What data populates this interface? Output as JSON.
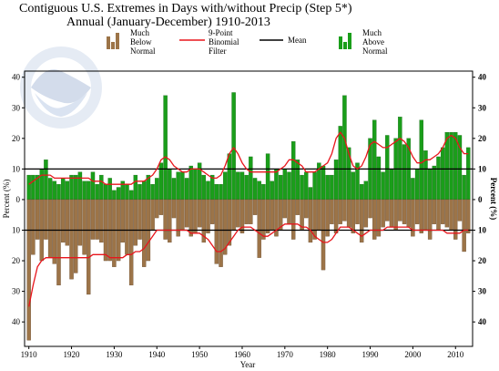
{
  "chart_data": {
    "type": "bar",
    "title": "Contiguous U.S. Extremes in Days with/without Precip (Step 5*)",
    "subtitle": "Annual (January-December) 1910-2013",
    "xlabel": "Year",
    "ylabel_left": "Percent (%)",
    "ylabel_right": "Percent (%)",
    "xlim": [
      1909,
      2014
    ],
    "ylim": [
      -48,
      42
    ],
    "yticks_left": [
      "40",
      "30",
      "20",
      "10",
      "0",
      "10",
      "20",
      "30",
      "40"
    ],
    "yticks_right": [
      "40",
      "30",
      "20",
      "10",
      "0",
      "10",
      "20",
      "30",
      "40"
    ],
    "xticks": [
      "1910",
      "1920",
      "1930",
      "1940",
      "1950",
      "1960",
      "1970",
      "1980",
      "1990",
      "2000",
      "2010"
    ],
    "mean_lines": [
      10,
      -10
    ],
    "legend": {
      "below_label": "Much Below Normal",
      "filter_label": "9-Point Binomial Filter",
      "mean_label": "Mean",
      "above_label": "Much Above Normal"
    },
    "colors": {
      "above": "#1a9e1a",
      "below": "#9c7448",
      "filter": "#e8151c",
      "mean": "#000000"
    },
    "years": [
      1910,
      1911,
      1912,
      1913,
      1914,
      1915,
      1916,
      1917,
      1918,
      1919,
      1920,
      1921,
      1922,
      1923,
      1924,
      1925,
      1926,
      1927,
      1928,
      1929,
      1930,
      1931,
      1932,
      1933,
      1934,
      1935,
      1936,
      1937,
      1938,
      1939,
      1940,
      1941,
      1942,
      1943,
      1944,
      1945,
      1946,
      1947,
      1948,
      1949,
      1950,
      1951,
      1952,
      1953,
      1954,
      1955,
      1956,
      1957,
      1958,
      1959,
      1960,
      1961,
      1962,
      1963,
      1964,
      1965,
      1966,
      1967,
      1968,
      1969,
      1970,
      1971,
      1972,
      1973,
      1974,
      1975,
      1976,
      1977,
      1978,
      1979,
      1980,
      1981,
      1982,
      1983,
      1984,
      1985,
      1986,
      1987,
      1988,
      1989,
      1990,
      1991,
      1992,
      1993,
      1994,
      1995,
      1996,
      1997,
      1998,
      1999,
      2000,
      2001,
      2002,
      2003,
      2004,
      2005,
      2006,
      2007,
      2008,
      2009,
      2010,
      2011,
      2012,
      2013
    ],
    "series": [
      {
        "name": "Much Above Normal",
        "values": [
          8,
          8,
          8,
          10,
          13,
          7,
          6,
          5,
          7,
          6,
          8,
          8,
          9,
          6,
          6,
          9,
          5,
          8,
          5,
          7,
          3,
          4,
          6,
          5,
          3,
          8,
          5,
          6,
          8,
          5,
          7,
          12,
          34,
          10,
          7,
          9,
          9,
          7,
          11,
          10,
          12,
          8,
          6,
          8,
          5,
          5,
          9,
          15,
          35,
          9,
          9,
          8,
          14,
          7,
          6,
          5,
          15,
          6,
          10,
          8,
          10,
          9,
          19,
          13,
          8,
          9,
          4,
          9,
          12,
          11,
          8,
          8,
          13,
          24,
          34,
          17,
          9,
          12,
          5,
          6,
          20,
          26,
          14,
          9,
          21,
          10,
          20,
          27,
          18,
          20,
          7,
          10,
          26,
          16,
          10,
          11,
          14,
          17,
          22,
          22,
          22,
          21,
          8,
          17
        ]
      },
      {
        "name": "Much Below Normal",
        "values": [
          -46,
          -18,
          -13,
          -20,
          -13,
          -19,
          -21,
          -28,
          -14,
          -15,
          -26,
          -24,
          -15,
          -18,
          -31,
          -13,
          -13,
          -14,
          -20,
          -20,
          -22,
          -20,
          -14,
          -18,
          -28,
          -15,
          -13,
          -22,
          -20,
          -10,
          -6,
          -5,
          -13,
          -14,
          -6,
          -12,
          -10,
          -9,
          -12,
          -11,
          -9,
          -14,
          -11,
          -8,
          -21,
          -22,
          -18,
          -15,
          -10,
          -9,
          -11,
          -8,
          -8,
          -5,
          -19,
          -13,
          -11,
          -10,
          -12,
          -10,
          -6,
          -8,
          -13,
          -5,
          -10,
          -6,
          -14,
          -13,
          -10,
          -23,
          -12,
          -8,
          -11,
          -8,
          -7,
          -9,
          -11,
          -8,
          -14,
          -9,
          -6,
          -13,
          -12,
          -9,
          -7,
          -9,
          -10,
          -7,
          -8,
          -9,
          -12,
          -8,
          -11,
          -10,
          -13,
          -8,
          -10,
          -8,
          -9,
          -10,
          -13,
          -7,
          -17,
          -11
        ]
      },
      {
        "name": "9-Point Binomial Filter",
        "values_above": [
          5,
          6,
          7,
          8,
          8,
          8,
          7,
          7,
          7,
          7,
          7,
          7,
          7,
          7,
          7,
          6,
          6,
          6,
          5,
          5,
          5,
          5,
          5,
          5,
          5,
          6,
          6,
          6,
          7,
          8,
          10,
          13,
          14,
          13,
          11,
          10,
          9,
          9,
          10,
          10,
          10,
          9,
          8,
          7,
          7,
          8,
          11,
          15,
          17,
          15,
          12,
          10,
          9,
          9,
          9,
          9,
          9,
          9,
          9,
          10,
          11,
          13,
          13,
          12,
          11,
          9,
          9,
          9,
          10,
          11,
          12,
          15,
          20,
          22,
          20,
          15,
          11,
          10,
          11,
          14,
          18,
          19,
          18,
          17,
          17,
          18,
          19,
          20,
          19,
          17,
          14,
          12,
          12,
          13,
          13,
          14,
          15,
          17,
          20,
          21,
          20,
          17,
          15,
          15
        ],
        "values_below": [
          -35,
          -28,
          -22,
          -20,
          -19,
          -19,
          -19,
          -19,
          -19,
          -19,
          -19,
          -19,
          -19,
          -19,
          -19,
          -18,
          -18,
          -18,
          -18,
          -19,
          -19,
          -19,
          -19,
          -18,
          -18,
          -17,
          -17,
          -16,
          -14,
          -12,
          -10,
          -10,
          -10,
          -10,
          -10,
          -10,
          -10,
          -10,
          -11,
          -11,
          -11,
          -12,
          -13,
          -15,
          -17,
          -17,
          -16,
          -14,
          -12,
          -10,
          -9,
          -9,
          -9,
          -10,
          -11,
          -12,
          -12,
          -11,
          -10,
          -9,
          -8,
          -8,
          -8,
          -8,
          -9,
          -9,
          -10,
          -12,
          -13,
          -14,
          -14,
          -13,
          -11,
          -9,
          -9,
          -9,
          -10,
          -11,
          -12,
          -11,
          -10,
          -10,
          -10,
          -10,
          -9,
          -9,
          -9,
          -9,
          -9,
          -9,
          -10,
          -10,
          -10,
          -10,
          -10,
          -10,
          -10,
          -10,
          -11,
          -11,
          -11,
          -11,
          -10,
          -10
        ]
      }
    ]
  }
}
